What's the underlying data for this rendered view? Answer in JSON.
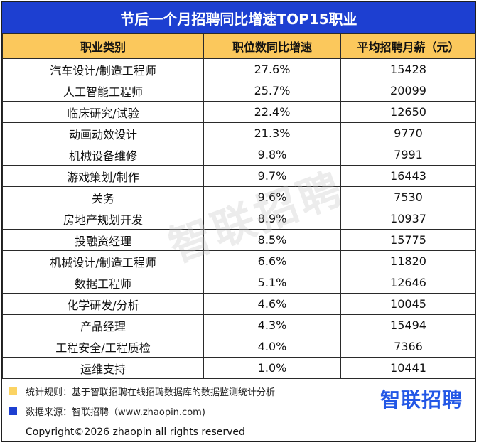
{
  "title": "节后一个月招聘同比增速TOP15职业",
  "watermark": "智联招聘",
  "colors": {
    "title_bg": "#1d3fd1",
    "header_bg": "#fbc85c",
    "note_yellow": "#fbd363",
    "note_blue": "#1d3fd1",
    "logo": "#2257e6"
  },
  "chart_data": {
    "type": "table",
    "title": "节后一个月招聘同比增速TOP15职业",
    "columns": [
      "职业类别",
      "职位数同比增速",
      "平均招聘月薪（元）"
    ],
    "rows": [
      [
        "汽车设计/制造工程师",
        "27.6%",
        "15428"
      ],
      [
        "人工智能工程师",
        "25.7%",
        "20099"
      ],
      [
        "临床研究/试验",
        "22.4%",
        "12650"
      ],
      [
        "动画动效设计",
        "21.3%",
        "9770"
      ],
      [
        "机械设备维修",
        "9.8%",
        "7991"
      ],
      [
        "游戏策划/制作",
        "9.7%",
        "16443"
      ],
      [
        "关务",
        "9.6%",
        "7530"
      ],
      [
        "房地产规划开发",
        "8.9%",
        "10937"
      ],
      [
        "投融资经理",
        "8.5%",
        "15775"
      ],
      [
        "机械设计/制造工程师",
        "6.6%",
        "11820"
      ],
      [
        "数据工程师",
        "5.1%",
        "12646"
      ],
      [
        "化学研发/分析",
        "4.6%",
        "10045"
      ],
      [
        "产品经理",
        "4.3%",
        "15494"
      ],
      [
        "工程安全/工程质检",
        "4.0%",
        "7366"
      ],
      [
        "运维支持",
        "1.0%",
        "10441"
      ]
    ]
  },
  "notes": {
    "rule": "统计规则：基于智联招聘在线招聘数据库的数据监测统计分析",
    "source": "数据来源：智联招聘（www.zhaopin.com)"
  },
  "logo_text": "智联招聘",
  "footer": "Copyright©2026 zhaopin all rights reserved"
}
